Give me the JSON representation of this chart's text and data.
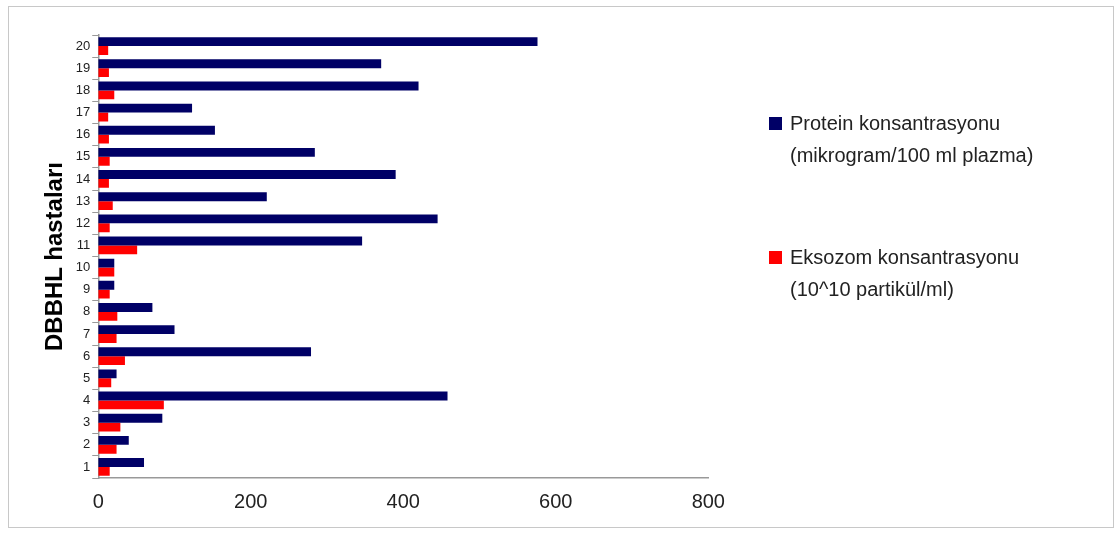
{
  "chart_data": {
    "type": "bar",
    "orientation": "horizontal",
    "ylabel": "DBBHL hastaları",
    "categories": [
      "20",
      "19",
      "18",
      "17",
      "16",
      "15",
      "14",
      "13",
      "12",
      "11",
      "10",
      "9",
      "8",
      "7",
      "6",
      "5",
      "4",
      "3",
      "2",
      "1"
    ],
    "series": [
      {
        "name": "Protein konsantrasyonu (mikrogram/100 ml plazma)",
        "color": "#000066",
        "values": [
          576,
          371,
          420,
          123,
          153,
          284,
          390,
          221,
          445,
          346,
          21,
          21,
          71,
          100,
          279,
          24,
          458,
          84,
          40,
          60
        ]
      },
      {
        "name": "Eksozom konsantrasyonu (10^10 partikül/ml)",
        "color": "#ff0000",
        "values": [
          13,
          14,
          21,
          13,
          14,
          15,
          14,
          19,
          15,
          51,
          21,
          15,
          25,
          24,
          35,
          17,
          86,
          29,
          24,
          15
        ]
      }
    ],
    "xlim": [
      0,
      800
    ],
    "xticks": [
      0,
      200,
      400,
      600,
      800
    ],
    "grid": false,
    "legend": "right"
  }
}
